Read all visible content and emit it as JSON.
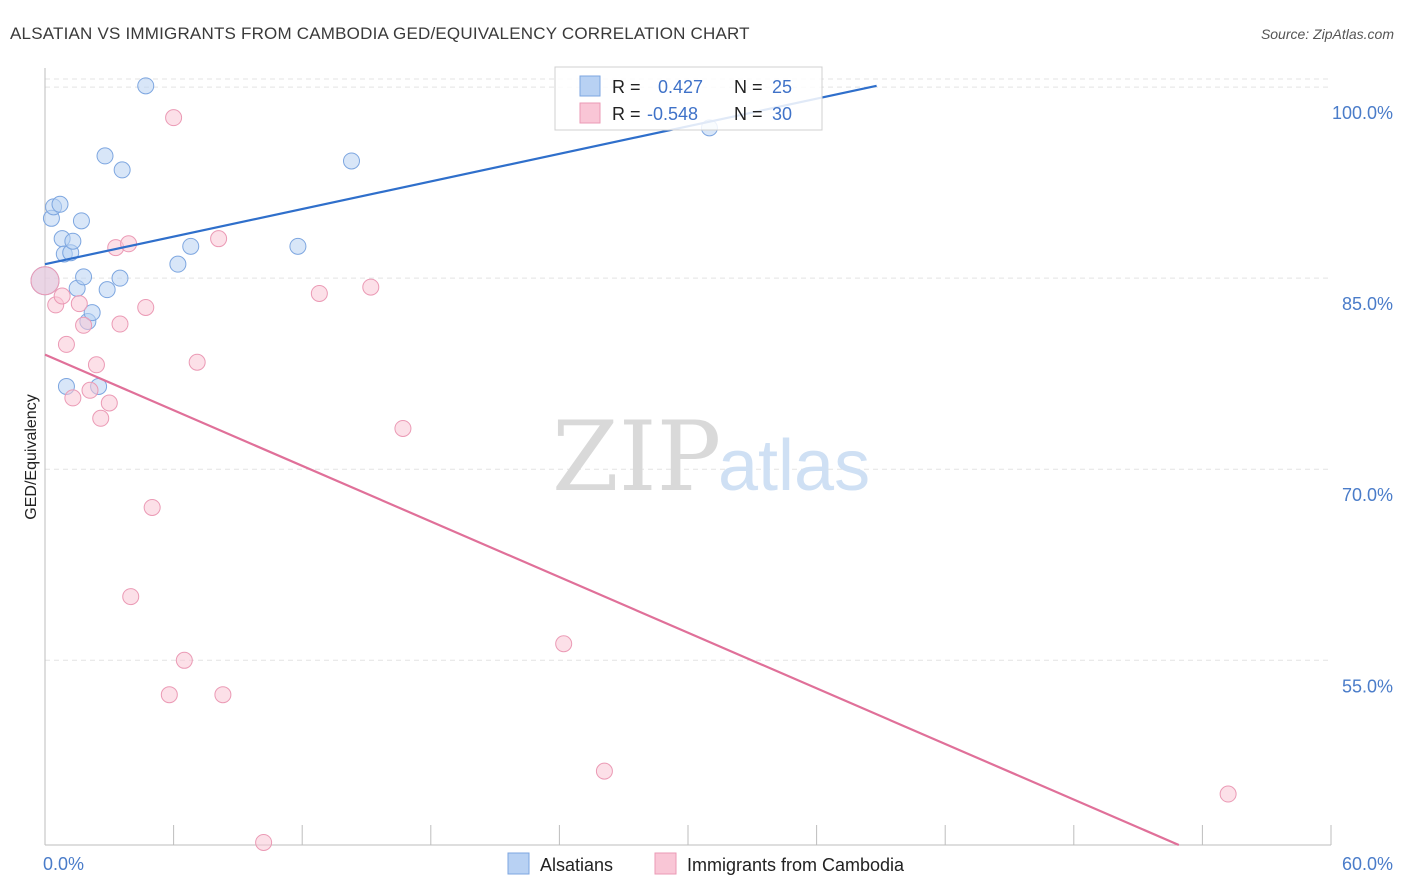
{
  "title": "ALSATIAN VS IMMIGRANTS FROM CAMBODIA GED/EQUIVALENCY CORRELATION CHART",
  "source": "Source: ZipAtlas.com",
  "watermark": {
    "zip": "ZIP",
    "atlas": "atlas"
  },
  "colors": {
    "alsatian_fill": "#b8d1f3",
    "alsatian_stroke": "#7da6e0",
    "alsatian_line": "#2f6fcb",
    "cambodia_fill": "#f9c6d6",
    "cambodia_stroke": "#eb9ab5",
    "cambodia_line": "#e07099",
    "grid": "#e3e3e3",
    "tick_text": "#4a7cc9"
  },
  "stats_box": {
    "rows": [
      {
        "r_label": "R =",
        "r_value": "0.427",
        "n_label": "N =",
        "n_value": "25"
      },
      {
        "r_label": "R =",
        "r_value": "-0.548",
        "n_label": "N =",
        "n_value": "30"
      }
    ]
  },
  "chart_data": {
    "type": "scatter",
    "title": "ALSATIAN VS IMMIGRANTS FROM CAMBODIA GED/EQUIVALENCY CORRELATION CHART",
    "xlabel": "",
    "ylabel": "GED/Equivalency",
    "xlim": [
      0,
      60
    ],
    "ylim": [
      40.5,
      101.5
    ],
    "x_tick_labels": [
      "0.0%",
      "60.0%"
    ],
    "y_ticks": [
      55,
      70,
      85,
      100
    ],
    "y_tick_labels": [
      "55.0%",
      "70.0%",
      "85.0%",
      "100.0%"
    ],
    "legend": [
      "Alsatians",
      "Immigrants from Cambodia"
    ],
    "legend_position": "bottom",
    "series": [
      {
        "name": "Alsatians",
        "r": 0.427,
        "n": 25,
        "points": [
          [
            0.0,
            84.8
          ],
          [
            0.3,
            89.7
          ],
          [
            0.4,
            90.6
          ],
          [
            0.7,
            90.8
          ],
          [
            0.8,
            88.1
          ],
          [
            0.9,
            86.9
          ],
          [
            1.0,
            76.5
          ],
          [
            1.2,
            87.0
          ],
          [
            1.3,
            87.9
          ],
          [
            1.5,
            84.2
          ],
          [
            1.7,
            89.5
          ],
          [
            1.8,
            85.1
          ],
          [
            2.0,
            81.6
          ],
          [
            2.2,
            82.3
          ],
          [
            2.5,
            76.5
          ],
          [
            2.8,
            94.6
          ],
          [
            2.9,
            84.1
          ],
          [
            3.5,
            85.0
          ],
          [
            3.6,
            93.5
          ],
          [
            4.7,
            100.1
          ],
          [
            6.2,
            86.1
          ],
          [
            6.8,
            87.5
          ],
          [
            11.8,
            87.5
          ],
          [
            14.3,
            94.2
          ],
          [
            31.0,
            96.8
          ]
        ],
        "trend": {
          "x": [
            0,
            38.8
          ],
          "y": [
            86.1,
            100.1
          ]
        }
      },
      {
        "name": "Immigrants from Cambodia",
        "r": -0.548,
        "n": 30,
        "points": [
          [
            0.0,
            84.8
          ],
          [
            0.5,
            82.9
          ],
          [
            0.8,
            83.6
          ],
          [
            1.0,
            79.8
          ],
          [
            1.3,
            75.6
          ],
          [
            1.6,
            83.0
          ],
          [
            1.8,
            81.3
          ],
          [
            2.1,
            76.2
          ],
          [
            2.4,
            78.2
          ],
          [
            2.6,
            74.0
          ],
          [
            3.0,
            75.2
          ],
          [
            3.3,
            87.4
          ],
          [
            3.5,
            81.4
          ],
          [
            3.9,
            87.7
          ],
          [
            4.0,
            60.0
          ],
          [
            4.7,
            82.7
          ],
          [
            5.0,
            67.0
          ],
          [
            5.8,
            52.3
          ],
          [
            6.0,
            97.6
          ],
          [
            6.5,
            55.0
          ],
          [
            7.1,
            78.4
          ],
          [
            8.1,
            88.1
          ],
          [
            8.3,
            52.3
          ],
          [
            10.2,
            40.7
          ],
          [
            12.8,
            83.8
          ],
          [
            15.2,
            84.3
          ],
          [
            16.7,
            73.2
          ],
          [
            24.2,
            56.3
          ],
          [
            26.1,
            46.3
          ],
          [
            55.2,
            44.5
          ]
        ],
        "trend": {
          "x": [
            0,
            52.9
          ],
          "y": [
            79.0,
            40.5
          ]
        }
      }
    ]
  }
}
